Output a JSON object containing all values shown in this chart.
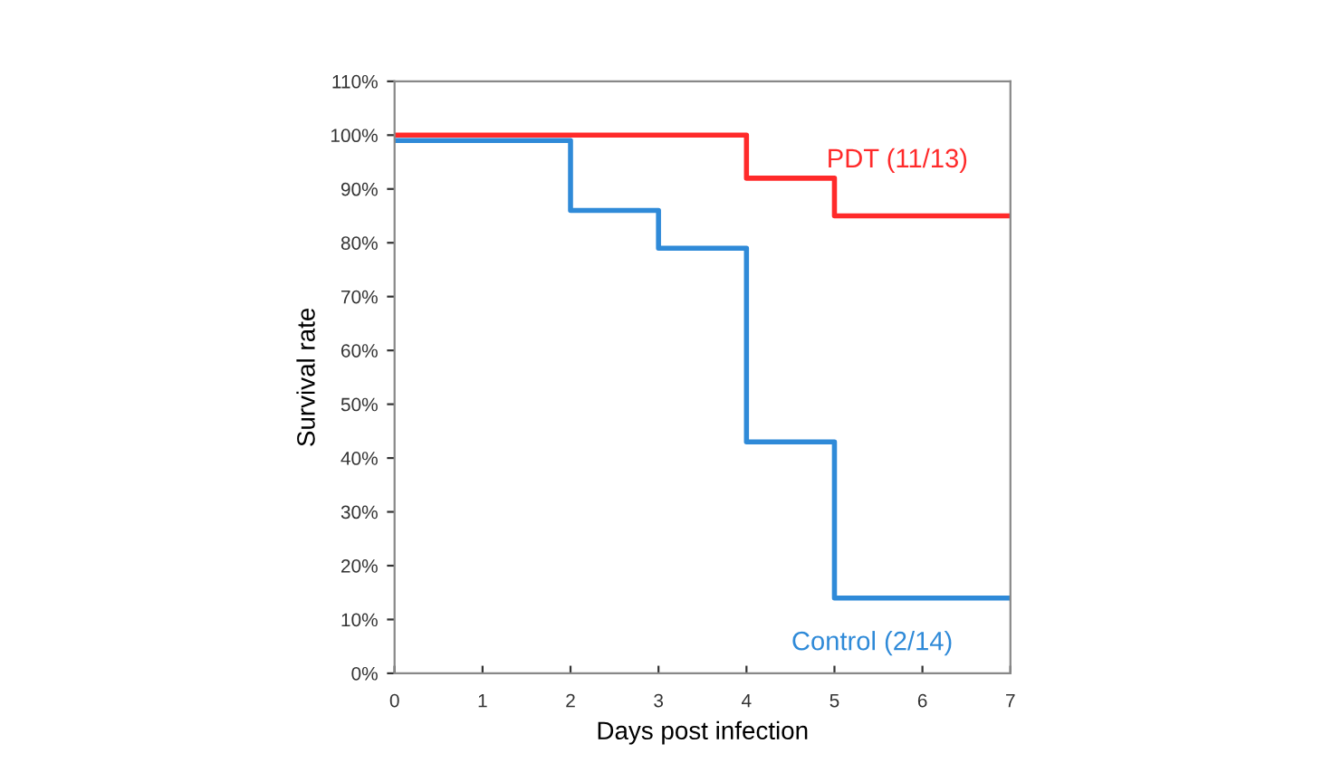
{
  "chart_data": {
    "type": "step",
    "xlabel": "Days post infection",
    "ylabel": "Survival rate",
    "series": [
      {
        "name": "PDT (11/13)",
        "color": "#ff2a2a",
        "x": [
          0,
          4,
          5,
          7
        ],
        "values": [
          100,
          92,
          85,
          85
        ]
      },
      {
        "name": "Control (2/14)",
        "color": "#2f8ad8",
        "x": [
          0,
          2,
          3,
          4,
          5,
          7
        ],
        "values": [
          99,
          86,
          79,
          43,
          14,
          14
        ]
      }
    ],
    "xlim": [
      0,
      7
    ],
    "xticks": [
      0,
      1,
      2,
      3,
      4,
      5,
      6,
      7
    ],
    "ylim": [
      0,
      110
    ],
    "yticks": [
      {
        "value": 0,
        "label": "0%"
      },
      {
        "value": 10,
        "label": "10%"
      },
      {
        "value": 20,
        "label": "20%"
      },
      {
        "value": 30,
        "label": "30%"
      },
      {
        "value": 40,
        "label": "40%"
      },
      {
        "value": 50,
        "label": "50%"
      },
      {
        "value": 60,
        "label": "60%"
      },
      {
        "value": 70,
        "label": "70%"
      },
      {
        "value": 80,
        "label": "80%"
      },
      {
        "value": 90,
        "label": "90%"
      },
      {
        "value": 100,
        "label": "100%"
      },
      {
        "value": 110,
        "label": "110%"
      }
    ],
    "grid": false,
    "legend": false
  }
}
